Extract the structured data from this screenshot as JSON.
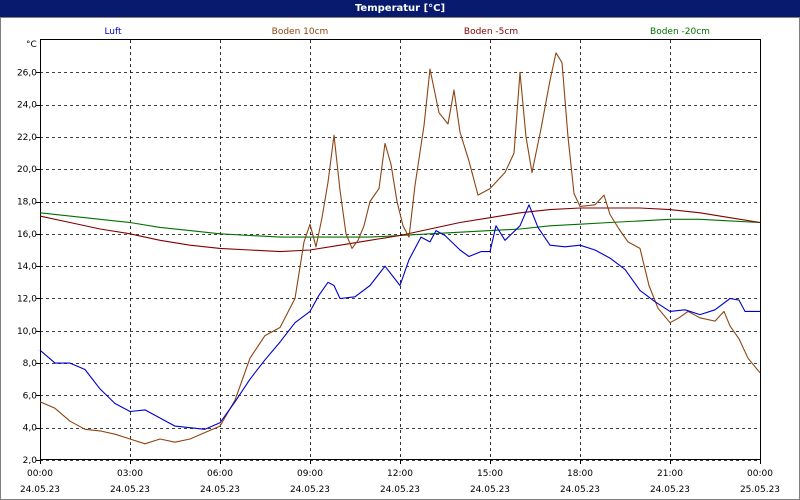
{
  "chart_data": {
    "type": "line",
    "title": "Temperatur [°C]",
    "ylabel": "°C",
    "xlabel": "",
    "ylim": [
      2,
      28
    ],
    "xlim": [
      0,
      24
    ],
    "grid": true,
    "legend_position": "top",
    "yticks": [
      "2,0",
      "4,0",
      "6,0",
      "8,0",
      "10,0",
      "12,0",
      "14,0",
      "16,0",
      "18,0",
      "20,0",
      "22,0",
      "24,0",
      "26,0"
    ],
    "xticks": [
      {
        "time": "00:00",
        "date": "24.05.23"
      },
      {
        "time": "03:00",
        "date": "24.05.23"
      },
      {
        "time": "06:00",
        "date": "24.05.23"
      },
      {
        "time": "09:00",
        "date": "24.05.23"
      },
      {
        "time": "12:00",
        "date": "24.05.23"
      },
      {
        "time": "15:00",
        "date": "24.05.23"
      },
      {
        "time": "18:00",
        "date": "24.05.23"
      },
      {
        "time": "21:00",
        "date": "24.05.23"
      },
      {
        "time": "00:00",
        "date": "25.05.23"
      }
    ],
    "x_unit": "hours",
    "series": [
      {
        "name": "Luft",
        "color": "#0000cc",
        "points": [
          [
            0,
            8.8
          ],
          [
            0.5,
            8.0
          ],
          [
            1.0,
            8.0
          ],
          [
            1.5,
            7.6
          ],
          [
            2.0,
            6.4
          ],
          [
            2.5,
            5.5
          ],
          [
            3.0,
            5.0
          ],
          [
            3.5,
            5.1
          ],
          [
            4.0,
            4.6
          ],
          [
            4.5,
            4.1
          ],
          [
            5.0,
            4.0
          ],
          [
            5.5,
            3.9
          ],
          [
            6.0,
            4.3
          ],
          [
            6.5,
            5.6
          ],
          [
            7.0,
            7.0
          ],
          [
            7.5,
            8.2
          ],
          [
            8.0,
            9.3
          ],
          [
            8.5,
            10.5
          ],
          [
            9.0,
            11.2
          ],
          [
            9.3,
            12.2
          ],
          [
            9.6,
            13.0
          ],
          [
            9.8,
            12.8
          ],
          [
            10.0,
            12.0
          ],
          [
            10.5,
            12.1
          ],
          [
            11.0,
            12.8
          ],
          [
            11.5,
            14.0
          ],
          [
            12.0,
            12.8
          ],
          [
            12.3,
            14.4
          ],
          [
            12.7,
            15.8
          ],
          [
            13.0,
            15.5
          ],
          [
            13.2,
            16.2
          ],
          [
            13.5,
            15.9
          ],
          [
            14.0,
            15.0
          ],
          [
            14.3,
            14.6
          ],
          [
            14.7,
            14.9
          ],
          [
            15.0,
            14.9
          ],
          [
            15.2,
            16.5
          ],
          [
            15.5,
            15.6
          ],
          [
            16.0,
            16.5
          ],
          [
            16.3,
            17.8
          ],
          [
            16.6,
            16.4
          ],
          [
            17.0,
            15.3
          ],
          [
            17.5,
            15.2
          ],
          [
            18.0,
            15.3
          ],
          [
            18.5,
            15.0
          ],
          [
            19.0,
            14.5
          ],
          [
            19.5,
            13.8
          ],
          [
            20.0,
            12.5
          ],
          [
            20.5,
            11.8
          ],
          [
            21.0,
            11.2
          ],
          [
            21.5,
            11.3
          ],
          [
            22.0,
            11.0
          ],
          [
            22.5,
            11.3
          ],
          [
            23.0,
            12.0
          ],
          [
            23.3,
            11.9
          ],
          [
            23.5,
            11.2
          ],
          [
            24.0,
            11.2
          ]
        ]
      },
      {
        "name": "Boden 10cm",
        "color": "#8b4513",
        "points": [
          [
            0,
            5.6
          ],
          [
            0.5,
            5.2
          ],
          [
            1.0,
            4.4
          ],
          [
            1.5,
            3.9
          ],
          [
            2.0,
            3.8
          ],
          [
            2.5,
            3.6
          ],
          [
            3.0,
            3.3
          ],
          [
            3.5,
            3.0
          ],
          [
            4.0,
            3.3
          ],
          [
            4.5,
            3.1
          ],
          [
            5.0,
            3.3
          ],
          [
            5.5,
            3.7
          ],
          [
            6.0,
            4.1
          ],
          [
            6.5,
            5.7
          ],
          [
            7.0,
            8.3
          ],
          [
            7.5,
            9.7
          ],
          [
            8.0,
            10.2
          ],
          [
            8.5,
            12.0
          ],
          [
            8.8,
            15.5
          ],
          [
            9.0,
            16.6
          ],
          [
            9.2,
            15.2
          ],
          [
            9.4,
            17.0
          ],
          [
            9.6,
            19.2
          ],
          [
            9.8,
            22.1
          ],
          [
            10.0,
            18.7
          ],
          [
            10.2,
            16.0
          ],
          [
            10.4,
            15.1
          ],
          [
            10.6,
            15.6
          ],
          [
            10.8,
            16.5
          ],
          [
            11.0,
            18.0
          ],
          [
            11.3,
            18.8
          ],
          [
            11.5,
            21.6
          ],
          [
            11.7,
            20.3
          ],
          [
            11.9,
            18.0
          ],
          [
            12.1,
            16.5
          ],
          [
            12.3,
            15.8
          ],
          [
            12.5,
            19.0
          ],
          [
            12.8,
            22.7
          ],
          [
            13.0,
            26.2
          ],
          [
            13.3,
            23.5
          ],
          [
            13.6,
            22.8
          ],
          [
            13.8,
            24.9
          ],
          [
            14.0,
            22.3
          ],
          [
            14.3,
            20.5
          ],
          [
            14.6,
            18.4
          ],
          [
            15.0,
            18.8
          ],
          [
            15.5,
            19.8
          ],
          [
            15.8,
            21.0
          ],
          [
            16.0,
            26.0
          ],
          [
            16.2,
            22.0
          ],
          [
            16.4,
            19.8
          ],
          [
            16.7,
            22.5
          ],
          [
            17.0,
            25.5
          ],
          [
            17.2,
            27.2
          ],
          [
            17.4,
            26.6
          ],
          [
            17.6,
            22.0
          ],
          [
            17.8,
            18.5
          ],
          [
            18.0,
            17.7
          ],
          [
            18.5,
            17.8
          ],
          [
            18.8,
            18.4
          ],
          [
            19.0,
            17.2
          ],
          [
            19.3,
            16.3
          ],
          [
            19.6,
            15.5
          ],
          [
            20.0,
            15.1
          ],
          [
            20.3,
            12.8
          ],
          [
            20.6,
            11.4
          ],
          [
            21.0,
            10.5
          ],
          [
            21.3,
            10.8
          ],
          [
            21.6,
            11.2
          ],
          [
            22.0,
            10.8
          ],
          [
            22.5,
            10.6
          ],
          [
            22.8,
            11.2
          ],
          [
            23.0,
            10.3
          ],
          [
            23.3,
            9.5
          ],
          [
            23.6,
            8.3
          ],
          [
            24.0,
            7.4
          ]
        ]
      },
      {
        "name": "Boden -5cm",
        "color": "#800000",
        "points": [
          [
            0,
            17.1
          ],
          [
            1,
            16.7
          ],
          [
            2,
            16.3
          ],
          [
            3,
            16.0
          ],
          [
            4,
            15.6
          ],
          [
            5,
            15.3
          ],
          [
            6,
            15.1
          ],
          [
            7,
            15.0
          ],
          [
            8,
            14.9
          ],
          [
            9,
            15.0
          ],
          [
            10,
            15.3
          ],
          [
            11,
            15.6
          ],
          [
            12,
            15.9
          ],
          [
            13,
            16.3
          ],
          [
            14,
            16.7
          ],
          [
            15,
            17.0
          ],
          [
            16,
            17.3
          ],
          [
            17,
            17.5
          ],
          [
            18,
            17.6
          ],
          [
            19,
            17.6
          ],
          [
            20,
            17.6
          ],
          [
            21,
            17.5
          ],
          [
            22,
            17.3
          ],
          [
            23,
            17.0
          ],
          [
            24,
            16.7
          ]
        ]
      },
      {
        "name": "Boden -20cm",
        "color": "#007000",
        "points": [
          [
            0,
            17.3
          ],
          [
            1,
            17.1
          ],
          [
            2,
            16.9
          ],
          [
            3,
            16.7
          ],
          [
            4,
            16.4
          ],
          [
            5,
            16.2
          ],
          [
            6,
            16.0
          ],
          [
            7,
            15.9
          ],
          [
            8,
            15.8
          ],
          [
            9,
            15.8
          ],
          [
            10,
            15.8
          ],
          [
            11,
            15.8
          ],
          [
            12,
            15.9
          ],
          [
            13,
            16.0
          ],
          [
            14,
            16.1
          ],
          [
            15,
            16.2
          ],
          [
            16,
            16.3
          ],
          [
            17,
            16.5
          ],
          [
            18,
            16.6
          ],
          [
            19,
            16.7
          ],
          [
            20,
            16.8
          ],
          [
            21,
            16.9
          ],
          [
            22,
            16.9
          ],
          [
            23,
            16.8
          ],
          [
            24,
            16.7
          ]
        ]
      }
    ]
  }
}
